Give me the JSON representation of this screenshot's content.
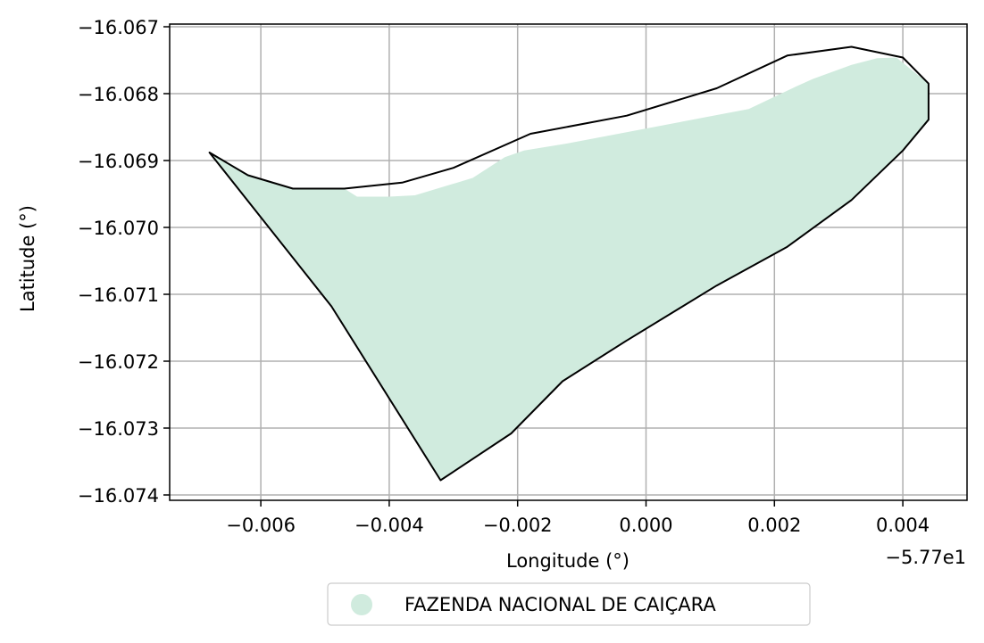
{
  "chart_data": {
    "type": "area",
    "xlabel": "Longitude (°)",
    "ylabel": "Latitude (°)",
    "x_offset_label": "−5.77e1",
    "xlim": [
      -0.00742,
      0.005
    ],
    "ylim": [
      -16.07408,
      -16.06696
    ],
    "x_ticks": [
      -0.006,
      -0.004,
      -0.002,
      0.0,
      0.002,
      0.004
    ],
    "x_tick_labels": [
      "−0.006",
      "−0.004",
      "−0.002",
      "0.000",
      "0.002",
      "0.004"
    ],
    "y_ticks": [
      -16.067,
      -16.068,
      -16.069,
      -16.07,
      -16.071,
      -16.072,
      -16.073,
      -16.074
    ],
    "y_tick_labels": [
      "−16.067",
      "−16.068",
      "−16.069",
      "−16.070",
      "−16.071",
      "−16.072",
      "−16.073",
      "−16.074"
    ],
    "grid": true,
    "legend": {
      "placement": "bottom-center-outside",
      "entries": [
        {
          "label": "FAZENDA NACIONAL DE CAIÇARA",
          "color": "#d0ebde"
        }
      ]
    },
    "series": [
      {
        "kind": "filled-area",
        "color": "#d0ebde",
        "points": [
          [
            -0.0068,
            -16.06888
          ],
          [
            -0.0062,
            -16.06922
          ],
          [
            -0.0055,
            -16.06942
          ],
          [
            -0.0047,
            -16.06942
          ],
          [
            -0.0045,
            -16.06954
          ],
          [
            -0.004,
            -16.06954
          ],
          [
            -0.0036,
            -16.06952
          ],
          [
            -0.0027,
            -16.06926
          ],
          [
            -0.0022,
            -16.06895
          ],
          [
            -0.0019,
            -16.06885
          ],
          [
            -0.0012,
            -16.06874
          ],
          [
            0.0016,
            -16.06823
          ],
          [
            0.0023,
            -16.06791
          ],
          [
            0.0026,
            -16.06778
          ],
          [
            0.0032,
            -16.06757
          ],
          [
            0.0036,
            -16.06747
          ],
          [
            0.0039,
            -16.06746
          ],
          [
            0.0044,
            -16.06785
          ],
          [
            0.0044,
            -16.06839
          ],
          [
            0.004,
            -16.06885
          ],
          [
            0.0032,
            -16.06959
          ],
          [
            0.0022,
            -16.07029
          ],
          [
            0.0011,
            -16.07087
          ],
          [
            -0.0003,
            -16.07169
          ],
          [
            -0.0013,
            -16.0723
          ],
          [
            -0.0021,
            -16.07308
          ],
          [
            -0.0032,
            -16.07378
          ],
          [
            -0.0049,
            -16.07118
          ]
        ]
      },
      {
        "kind": "outline",
        "color": "#000000",
        "points": [
          [
            -0.0068,
            -16.06888
          ],
          [
            -0.0062,
            -16.06922
          ],
          [
            -0.0055,
            -16.06942
          ],
          [
            -0.0047,
            -16.06942
          ],
          [
            -0.0038,
            -16.06933
          ],
          [
            -0.003,
            -16.06911
          ],
          [
            -0.0018,
            -16.0686
          ],
          [
            -0.0003,
            -16.06833
          ],
          [
            0.0011,
            -16.06792
          ],
          [
            0.0022,
            -16.06743
          ],
          [
            0.0032,
            -16.0673
          ],
          [
            0.004,
            -16.06746
          ],
          [
            0.0044,
            -16.06785
          ],
          [
            0.0044,
            -16.06839
          ],
          [
            0.004,
            -16.06885
          ],
          [
            0.0032,
            -16.06959
          ],
          [
            0.0022,
            -16.07029
          ],
          [
            0.0011,
            -16.07087
          ],
          [
            -0.0003,
            -16.07169
          ],
          [
            -0.0013,
            -16.0723
          ],
          [
            -0.0021,
            -16.07308
          ],
          [
            -0.0032,
            -16.07378
          ],
          [
            -0.0049,
            -16.07118
          ]
        ]
      }
    ]
  }
}
